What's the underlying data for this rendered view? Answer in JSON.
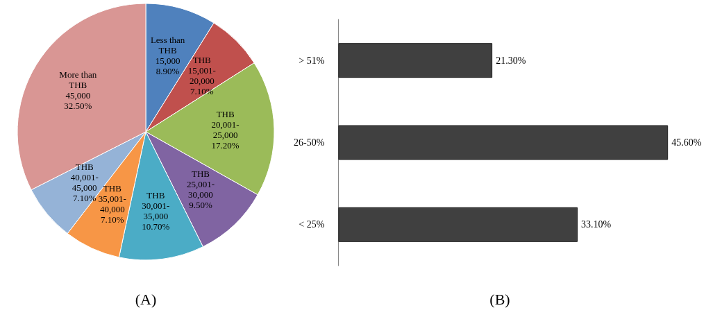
{
  "chart_data": [
    {
      "type": "pie",
      "title": "(A)",
      "legend": false,
      "categories": [
        "Less than THB 15,000",
        "THB 15,001-20,000",
        "THB 20,001-25,000",
        "THB 25,001-30,000",
        "THB 30,001-35,000",
        "THB 35,001-40,000",
        "THB 40,001-45,000",
        "More than THB 45,000"
      ],
      "values": [
        8.9,
        7.1,
        17.2,
        9.5,
        10.7,
        7.1,
        7.1,
        32.5
      ],
      "value_labels": [
        "8.90%",
        "7.10%",
        "17.20%",
        "9.50%",
        "10.70%",
        "7.10%",
        "7.10%",
        "32.50%"
      ],
      "colors": [
        "#4f81bd",
        "#c0504d",
        "#9bbb59",
        "#8064a2",
        "#4bacc6",
        "#f79646",
        "#95b3d7",
        "#d99694"
      ]
    },
    {
      "type": "bar",
      "title": "(B)",
      "orientation": "horizontal",
      "legend": false,
      "categories": [
        "> 51%",
        "26-50%",
        "< 25%"
      ],
      "values": [
        21.3,
        45.6,
        33.1
      ],
      "value_labels": [
        "21.30%",
        "45.60%",
        "33.10%"
      ],
      "color": "#404040"
    }
  ]
}
